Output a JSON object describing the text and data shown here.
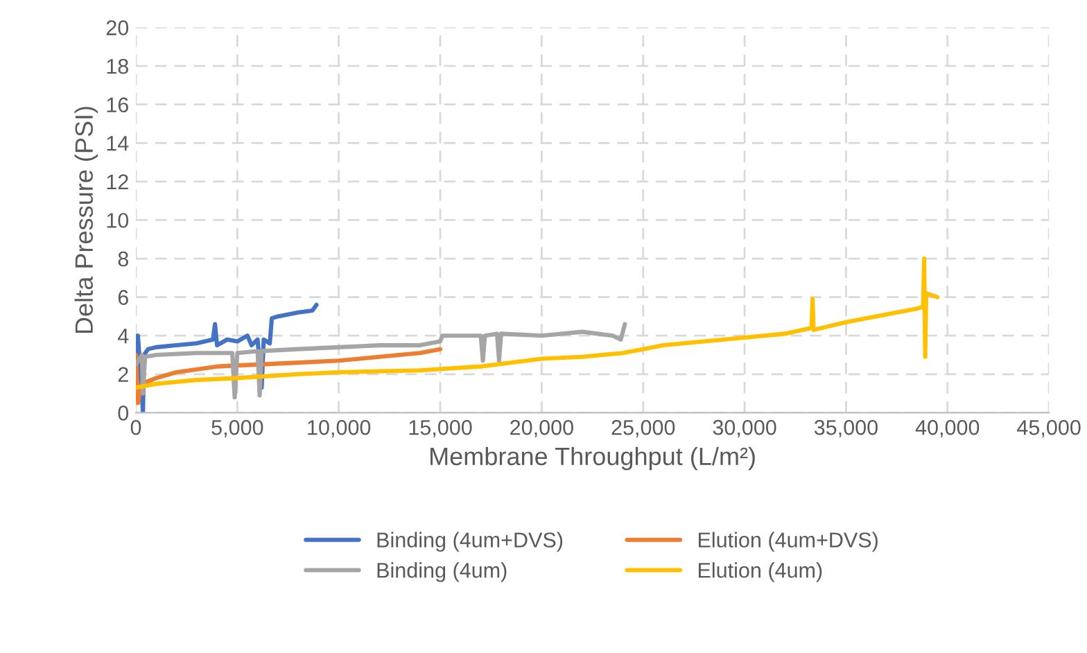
{
  "chart_data": {
    "type": "line",
    "xlabel": "Membrane Throughput (L/m²)",
    "ylabel": "Delta Pressure (PSI)",
    "xlim": [
      0,
      45000
    ],
    "ylim": [
      0,
      20
    ],
    "xticks": [
      {
        "value": 0,
        "label": "0"
      },
      {
        "value": 5000,
        "label": "5,000"
      },
      {
        "value": 10000,
        "label": "10,000"
      },
      {
        "value": 15000,
        "label": "15,000"
      },
      {
        "value": 20000,
        "label": "20,000"
      },
      {
        "value": 25000,
        "label": "25,000"
      },
      {
        "value": 30000,
        "label": "30,000"
      },
      {
        "value": 35000,
        "label": "35,000"
      },
      {
        "value": 40000,
        "label": "40,000"
      },
      {
        "value": 45000,
        "label": "45,000"
      }
    ],
    "yticks": [
      0,
      2,
      4,
      6,
      8,
      10,
      12,
      14,
      16,
      18,
      20
    ],
    "grid": true,
    "legend": "bottom",
    "line_style": "solid",
    "marker": "none",
    "series": [
      {
        "name": "Binding (4um+DVS)",
        "color": "#4472c4",
        "x": [
          0,
          100,
          200,
          350,
          400,
          600,
          1000,
          2000,
          3000,
          3800,
          3900,
          4000,
          4500,
          5000,
          5500,
          5700,
          6000,
          6200,
          6300,
          6600,
          6700,
          7000,
          8000,
          8700,
          8900
        ],
        "values": [
          2.8,
          4.0,
          2.5,
          0,
          3.0,
          3.3,
          3.4,
          3.5,
          3.6,
          3.8,
          4.6,
          3.5,
          3.8,
          3.7,
          4.0,
          3.5,
          3.8,
          1.3,
          3.8,
          3.6,
          4.9,
          5.0,
          5.2,
          5.3,
          5.6
        ]
      },
      {
        "name": "Elution (4um+DVS)",
        "color": "#ed7d31",
        "x": [
          0,
          100,
          300,
          1000,
          2000,
          4000,
          6000,
          8000,
          10000,
          12000,
          14000,
          15000
        ],
        "values": [
          3.0,
          0.5,
          1.5,
          1.8,
          2.1,
          2.4,
          2.5,
          2.6,
          2.7,
          2.9,
          3.1,
          3.3
        ]
      },
      {
        "name": "Binding (4um)",
        "color": "#a5a5a5",
        "x": [
          0,
          300,
          350,
          450,
          1000,
          3000,
          4750,
          4870,
          5000,
          6000,
          6100,
          6200,
          8000,
          10000,
          12000,
          14000,
          15000,
          15100,
          17000,
          17100,
          17200,
          17800,
          17900,
          18000,
          20000,
          22000,
          23500,
          23900,
          24100
        ],
        "values": [
          2.5,
          3.0,
          1.0,
          2.9,
          3.0,
          3.1,
          3.1,
          0.8,
          3.1,
          3.2,
          0.9,
          3.2,
          3.3,
          3.4,
          3.5,
          3.5,
          3.7,
          4.0,
          4.0,
          2.7,
          4.0,
          4.1,
          2.7,
          4.1,
          4.0,
          4.2,
          4.0,
          3.8,
          4.6
        ]
      },
      {
        "name": "Elution (4um)",
        "color": "#ffc000",
        "x": [
          0,
          1000,
          3000,
          5000,
          8000,
          10000,
          14000,
          17000,
          20000,
          22000,
          24000,
          25000,
          26000,
          28000,
          30000,
          32000,
          33300,
          33350,
          33400,
          35000,
          37000,
          38500,
          38800,
          38850,
          38900,
          38950,
          39500
        ],
        "values": [
          1.3,
          1.5,
          1.7,
          1.8,
          2.0,
          2.1,
          2.2,
          2.4,
          2.8,
          2.9,
          3.1,
          3.3,
          3.5,
          3.7,
          3.9,
          4.1,
          4.4,
          5.9,
          4.3,
          4.7,
          5.1,
          5.4,
          5.5,
          8.0,
          2.9,
          6.2,
          6.0
        ]
      }
    ]
  }
}
